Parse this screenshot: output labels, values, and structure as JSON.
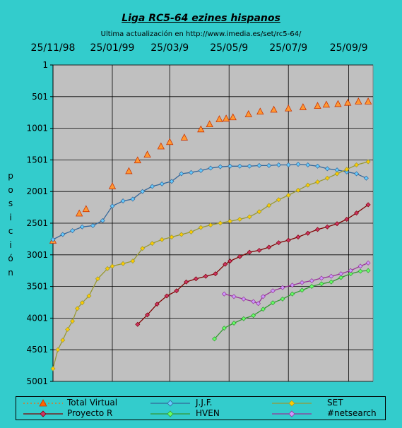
{
  "chart_data": {
    "type": "line",
    "title": "Liga RC5-64 ezines hispanos",
    "subtitle": "Ultima actualización en http://www.imedia.es/set/rc5-64/",
    "ylabel": "posición",
    "y_reversed": true,
    "ylim": [
      1,
      5001
    ],
    "yticks": [
      1,
      501,
      1001,
      1501,
      2001,
      2501,
      3001,
      3501,
      4001,
      4501,
      5001
    ],
    "x_tick_labels": [
      "25/11/98",
      "25/01/99",
      "25/03/9",
      "25/05/9",
      "25/07/9",
      "25/09/9"
    ],
    "grid": "vertical-and-horizontal",
    "legend_position": "bottom",
    "colors": {
      "background": "#33CCCC",
      "plot_area": "#C0C0C0",
      "total_virtual": "#FF6600",
      "jjf": "#336699",
      "set": "#999933",
      "proyecto_r": "#800000",
      "hven": "#339933",
      "netsearch": "#993399"
    },
    "series": [
      {
        "name": "Total Virtual",
        "x": [
          "1998-11-25",
          "1998-12-22",
          "1998-12-29",
          "1999-01-25",
          "1999-02-11",
          "1999-02-20",
          "1999-03-02",
          "1999-03-16",
          "1999-03-25",
          "1999-04-09",
          "1999-04-26",
          "1999-05-05",
          "1999-05-15",
          "1999-05-22",
          "1999-05-29",
          "1999-06-14",
          "1999-06-26",
          "1999-07-10",
          "1999-07-25",
          "1999-08-09",
          "1999-08-24",
          "1999-09-02",
          "1999-09-14",
          "1999-09-24",
          "1999-10-05",
          "1999-10-15"
        ],
        "values": [
          2780,
          2350,
          2280,
          1920,
          1680,
          1510,
          1420,
          1290,
          1220,
          1150,
          1020,
          940,
          860,
          850,
          830,
          780,
          740,
          710,
          690,
          670,
          650,
          630,
          620,
          600,
          580,
          580
        ]
      },
      {
        "name": "J.J.F.",
        "x": [
          "1998-11-25",
          "1998-12-05",
          "1998-12-15",
          "1998-12-25",
          "1999-01-05",
          "1999-01-15",
          "1999-01-25",
          "1999-02-05",
          "1999-02-15",
          "1999-02-25",
          "1999-03-07",
          "1999-03-17",
          "1999-03-27",
          "1999-04-06",
          "1999-04-16",
          "1999-04-26",
          "1999-05-06",
          "1999-05-16",
          "1999-05-26",
          "1999-06-05",
          "1999-06-15",
          "1999-06-25",
          "1999-07-05",
          "1999-07-15",
          "1999-07-25",
          "1999-08-04",
          "1999-08-14",
          "1999-08-24",
          "1999-09-03",
          "1999-09-13",
          "1999-09-23",
          "1999-10-03",
          "1999-10-13"
        ],
        "values": [
          2760,
          2680,
          2620,
          2560,
          2540,
          2460,
          2230,
          2150,
          2120,
          2000,
          1920,
          1880,
          1840,
          1720,
          1700,
          1670,
          1630,
          1610,
          1600,
          1600,
          1600,
          1590,
          1590,
          1580,
          1580,
          1570,
          1580,
          1600,
          1640,
          1660,
          1690,
          1720,
          1790
        ]
      },
      {
        "name": "SET",
        "x": [
          "1998-11-25",
          "1998-11-30",
          "1998-12-05",
          "1998-12-10",
          "1998-12-15",
          "1998-12-20",
          "1998-12-25",
          "1999-01-01",
          "1999-01-10",
          "1999-01-20",
          "1999-01-25",
          "1999-02-05",
          "1999-02-15",
          "1999-02-25",
          "1999-03-07",
          "1999-03-17",
          "1999-03-27",
          "1999-04-06",
          "1999-04-16",
          "1999-04-26",
          "1999-05-06",
          "1999-05-16",
          "1999-05-26",
          "1999-06-05",
          "1999-06-15",
          "1999-06-25",
          "1999-07-05",
          "1999-07-15",
          "1999-07-25",
          "1999-08-04",
          "1999-08-14",
          "1999-08-24",
          "1999-09-03",
          "1999-09-13",
          "1999-09-23",
          "1999-10-03",
          "1999-10-15"
        ],
        "values": [
          4800,
          4500,
          4350,
          4180,
          4050,
          3850,
          3760,
          3650,
          3380,
          3220,
          3180,
          3140,
          3100,
          2900,
          2820,
          2760,
          2720,
          2680,
          2640,
          2570,
          2530,
          2500,
          2470,
          2440,
          2400,
          2320,
          2220,
          2130,
          2060,
          1980,
          1900,
          1850,
          1790,
          1720,
          1650,
          1580,
          1530
        ]
      },
      {
        "name": "Proyecto R",
        "x": [
          "1999-02-20",
          "1999-03-02",
          "1999-03-12",
          "1999-03-22",
          "1999-04-01",
          "1999-04-11",
          "1999-04-21",
          "1999-05-01",
          "1999-05-11",
          "1999-05-21",
          "1999-05-26",
          "1999-06-05",
          "1999-06-15",
          "1999-06-25",
          "1999-07-05",
          "1999-07-15",
          "1999-07-25",
          "1999-08-04",
          "1999-08-14",
          "1999-08-24",
          "1999-09-03",
          "1999-09-13",
          "1999-09-23",
          "1999-10-03",
          "1999-10-15"
        ],
        "values": [
          4100,
          3950,
          3780,
          3650,
          3570,
          3430,
          3380,
          3340,
          3300,
          3150,
          3100,
          3030,
          2960,
          2930,
          2880,
          2810,
          2770,
          2720,
          2660,
          2600,
          2560,
          2510,
          2440,
          2340,
          2210
        ]
      },
      {
        "name": "HVEN",
        "x": [
          "1999-05-10",
          "1999-05-20",
          "1999-05-30",
          "1999-06-09",
          "1999-06-19",
          "1999-06-29",
          "1999-07-09",
          "1999-07-19",
          "1999-07-29",
          "1999-08-08",
          "1999-08-18",
          "1999-08-28",
          "1999-09-07",
          "1999-09-17",
          "1999-09-27",
          "1999-10-07",
          "1999-10-15"
        ],
        "values": [
          4330,
          4160,
          4080,
          4010,
          3960,
          3860,
          3760,
          3700,
          3620,
          3560,
          3500,
          3460,
          3430,
          3360,
          3300,
          3260,
          3250
        ]
      },
      {
        "name": "#netsearch",
        "x": [
          "1999-05-20",
          "1999-05-30",
          "1999-06-09",
          "1999-06-19",
          "1999-06-24",
          "1999-06-29",
          "1999-07-09",
          "1999-07-19",
          "1999-07-29",
          "1999-08-08",
          "1999-08-18",
          "1999-08-28",
          "1999-09-07",
          "1999-09-17",
          "1999-09-27",
          "1999-10-07",
          "1999-10-15"
        ],
        "values": [
          3620,
          3660,
          3700,
          3740,
          3770,
          3660,
          3570,
          3520,
          3480,
          3440,
          3410,
          3370,
          3340,
          3300,
          3250,
          3180,
          3130
        ]
      }
    ]
  },
  "legend": {
    "items": [
      {
        "label": "Total Virtual"
      },
      {
        "label": "J.J.F."
      },
      {
        "label": "SET"
      },
      {
        "label": "Proyecto R"
      },
      {
        "label": "HVEN"
      },
      {
        "label": "#netsearch"
      }
    ]
  }
}
